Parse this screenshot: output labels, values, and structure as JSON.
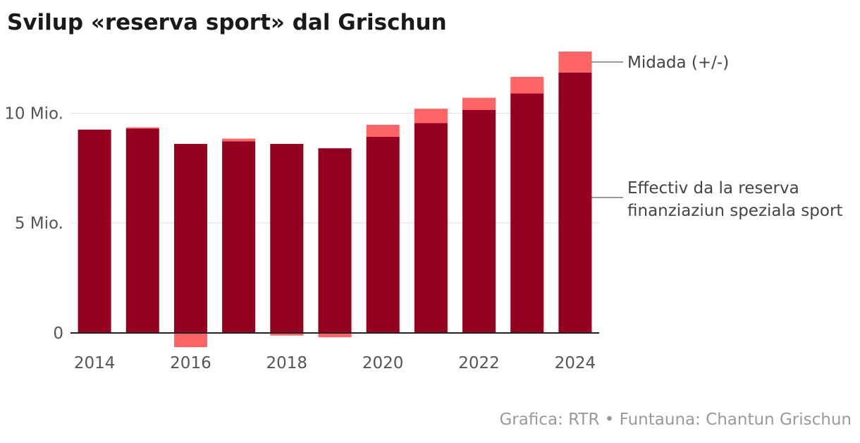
{
  "chart_data": {
    "type": "bar",
    "title": "Svilup «reserva sport» dal Grischun",
    "categories": [
      "2014",
      "2015",
      "2016",
      "2017",
      "2018",
      "2019",
      "2020",
      "2021",
      "2022",
      "2023",
      "2024"
    ],
    "x_tick_labels": [
      "2014",
      "2016",
      "2018",
      "2020",
      "2022",
      "2024"
    ],
    "y_ticks": [
      0,
      5,
      10
    ],
    "y_tick_labels": [
      "0",
      "5 Mio.",
      "10 Mio."
    ],
    "ylim": [
      -0.9,
      12.9
    ],
    "series": [
      {
        "name": "Effectiv da la reserva finanziaziun speziala sport",
        "label_lines": [
          "Effectiv da la reserva",
          "finanziaziun speziala sport"
        ],
        "color": "#960020",
        "values": [
          9.25,
          9.3,
          8.6,
          8.72,
          8.6,
          8.4,
          8.92,
          9.55,
          10.15,
          10.9,
          11.85
        ]
      },
      {
        "name": "Midada (+/-)",
        "color": "#ff6466",
        "values": [
          0,
          0.05,
          -0.65,
          0.12,
          -0.12,
          -0.2,
          0.55,
          0.65,
          0.55,
          0.75,
          0.95
        ]
      }
    ],
    "gridlines": true,
    "source": "Grafica: RTR • Funtauna: Chantun Grischun"
  }
}
